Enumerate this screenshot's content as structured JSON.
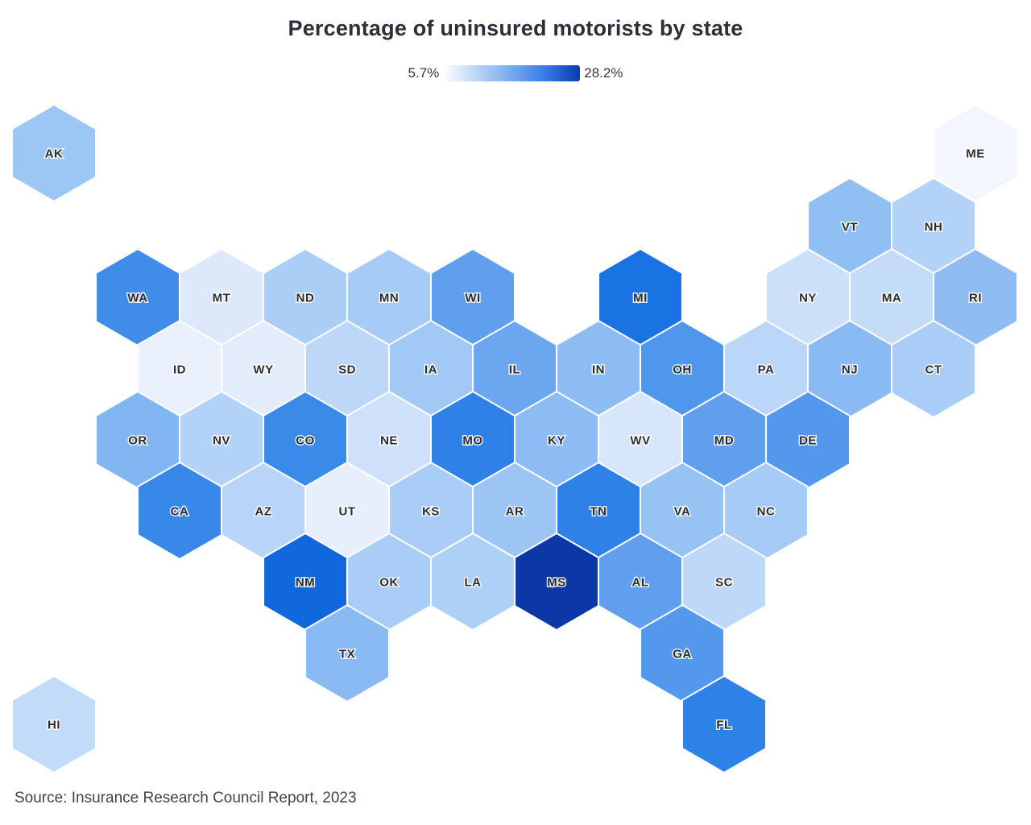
{
  "title": "Percentage of uninsured motorists by state",
  "legend": {
    "min_label": "5.7%",
    "max_label": "28.2%",
    "min_value": 5.7,
    "max_value": 28.2,
    "gradient_start_color": "#ffffff",
    "gradient_mid_color": "#3b82e8",
    "gradient_end_color": "#0a3bb3"
  },
  "source": "Source: Insurance Research Council Report, 2023",
  "chart_data": {
    "type": "heatmap",
    "subtype": "hex-tile-cartogram",
    "title": "Percentage of uninsured motorists by state",
    "value_unit": "%",
    "scale_min": 5.7,
    "scale_max": 28.2,
    "legend_position": "top-center",
    "label_color": "#2d2d2d",
    "states": [
      {
        "abbr": "AK",
        "row": 0,
        "col": 0,
        "color": "#9cc6f4",
        "value_est_pct": 12.5
      },
      {
        "abbr": "ME",
        "row": 0,
        "col": 11,
        "color": "#f3f7fd",
        "value_est_pct": 5.7
      },
      {
        "abbr": "VT",
        "row": 1,
        "col": 9.5,
        "color": "#90bff4",
        "value_est_pct": 13.3
      },
      {
        "abbr": "NH",
        "row": 1,
        "col": 10.5,
        "color": "#b3d2f7",
        "value_est_pct": 10.9
      },
      {
        "abbr": "WA",
        "row": 2,
        "col": 1,
        "color": "#3f8de9",
        "value_est_pct": 19.7
      },
      {
        "abbr": "MT",
        "row": 2,
        "col": 2,
        "color": "#dde9fb",
        "value_est_pct": 8.0
      },
      {
        "abbr": "ND",
        "row": 2,
        "col": 3,
        "color": "#abcef6",
        "value_est_pct": 11.3
      },
      {
        "abbr": "MN",
        "row": 2,
        "col": 4,
        "color": "#a6cbf6",
        "value_est_pct": 11.8
      },
      {
        "abbr": "WI",
        "row": 2,
        "col": 5,
        "color": "#5f9fee",
        "value_est_pct": 17.2
      },
      {
        "abbr": "MI",
        "row": 2,
        "col": 7,
        "color": "#1a73e2",
        "value_est_pct": 23.0
      },
      {
        "abbr": "NY",
        "row": 2,
        "col": 9,
        "color": "#cde0fa",
        "value_est_pct": 9.1
      },
      {
        "abbr": "MA",
        "row": 2,
        "col": 10,
        "color": "#c5dcf9",
        "value_est_pct": 9.5
      },
      {
        "abbr": "RI",
        "row": 2,
        "col": 11,
        "color": "#8fbdf3",
        "value_est_pct": 13.6
      },
      {
        "abbr": "ID",
        "row": 3,
        "col": 1.5,
        "color": "#e9f0fc",
        "value_est_pct": 7.0
      },
      {
        "abbr": "WY",
        "row": 3,
        "col": 2.5,
        "color": "#e3ecfb",
        "value_est_pct": 7.5
      },
      {
        "abbr": "SD",
        "row": 3,
        "col": 3.5,
        "color": "#bdd7f8",
        "value_est_pct": 10.2
      },
      {
        "abbr": "IA",
        "row": 3,
        "col": 4.5,
        "color": "#a2c9f5",
        "value_est_pct": 12.0
      },
      {
        "abbr": "IL",
        "row": 3,
        "col": 5.5,
        "color": "#6ba7ef",
        "value_est_pct": 16.3
      },
      {
        "abbr": "IN",
        "row": 3,
        "col": 6.5,
        "color": "#8cbcf3",
        "value_est_pct": 13.8
      },
      {
        "abbr": "OH",
        "row": 3,
        "col": 7.5,
        "color": "#4e97ec",
        "value_est_pct": 18.5
      },
      {
        "abbr": "PA",
        "row": 3,
        "col": 8.5,
        "color": "#bad6f8",
        "value_est_pct": 10.4
      },
      {
        "abbr": "NJ",
        "row": 3,
        "col": 9.5,
        "color": "#8abaf3",
        "value_est_pct": 14.0
      },
      {
        "abbr": "CT",
        "row": 3,
        "col": 10.5,
        "color": "#a9cdf6",
        "value_est_pct": 11.6
      },
      {
        "abbr": "OR",
        "row": 4,
        "col": 1,
        "color": "#82b6f2",
        "value_est_pct": 14.7
      },
      {
        "abbr": "NV",
        "row": 4,
        "col": 2,
        "color": "#b3d2f7",
        "value_est_pct": 10.9
      },
      {
        "abbr": "CO",
        "row": 4,
        "col": 3,
        "color": "#3a8ae9",
        "value_est_pct": 20.1
      },
      {
        "abbr": "NE",
        "row": 4,
        "col": 4,
        "color": "#cfe0fa",
        "value_est_pct": 9.1
      },
      {
        "abbr": "MO",
        "row": 4,
        "col": 5,
        "color": "#2f81e7",
        "value_est_pct": 21.0
      },
      {
        "abbr": "KY",
        "row": 4,
        "col": 6,
        "color": "#8cbcf3",
        "value_est_pct": 13.8
      },
      {
        "abbr": "WV",
        "row": 4,
        "col": 7,
        "color": "#d7e6fa",
        "value_est_pct": 8.4
      },
      {
        "abbr": "MD",
        "row": 4,
        "col": 8,
        "color": "#5f9fee",
        "value_est_pct": 17.2
      },
      {
        "abbr": "DE",
        "row": 4,
        "col": 9,
        "color": "#5398ec",
        "value_est_pct": 18.1
      },
      {
        "abbr": "CA",
        "row": 5,
        "col": 1.5,
        "color": "#3788e8",
        "value_est_pct": 20.3
      },
      {
        "abbr": "AZ",
        "row": 5,
        "col": 2.5,
        "color": "#b8d4f8",
        "value_est_pct": 10.7
      },
      {
        "abbr": "UT",
        "row": 5,
        "col": 3.5,
        "color": "#e8effc",
        "value_est_pct": 7.0
      },
      {
        "abbr": "KS",
        "row": 5,
        "col": 4.5,
        "color": "#a9cdf6",
        "value_est_pct": 11.6
      },
      {
        "abbr": "AR",
        "row": 5,
        "col": 5.5,
        "color": "#9cc5f5",
        "value_est_pct": 12.5
      },
      {
        "abbr": "TN",
        "row": 5,
        "col": 6.5,
        "color": "#2e81e7",
        "value_est_pct": 21.0
      },
      {
        "abbr": "VA",
        "row": 5,
        "col": 7.5,
        "color": "#96c2f4",
        "value_est_pct": 12.9
      },
      {
        "abbr": "NC",
        "row": 5,
        "col": 8.5,
        "color": "#a5cbf6",
        "value_est_pct": 11.8
      },
      {
        "abbr": "NM",
        "row": 6,
        "col": 3,
        "color": "#1168dc",
        "value_est_pct": 24.2
      },
      {
        "abbr": "OK",
        "row": 6,
        "col": 4,
        "color": "#a9cdf6",
        "value_est_pct": 11.6
      },
      {
        "abbr": "LA",
        "row": 6,
        "col": 5,
        "color": "#aed0f7",
        "value_est_pct": 11.3
      },
      {
        "abbr": "MS",
        "row": 6,
        "col": 6,
        "color": "#0b38a6",
        "value_est_pct": 28.2
      },
      {
        "abbr": "AL",
        "row": 6,
        "col": 7,
        "color": "#5f9fee",
        "value_est_pct": 17.2
      },
      {
        "abbr": "SC",
        "row": 6,
        "col": 8,
        "color": "#bdd8f8",
        "value_est_pct": 10.2
      },
      {
        "abbr": "TX",
        "row": 7,
        "col": 3.5,
        "color": "#8abaf3",
        "value_est_pct": 14.0
      },
      {
        "abbr": "GA",
        "row": 7,
        "col": 7.5,
        "color": "#5398ec",
        "value_est_pct": 18.1
      },
      {
        "abbr": "HI",
        "row": 8,
        "col": 0,
        "color": "#c2dbf9",
        "value_est_pct": 9.8
      },
      {
        "abbr": "FL",
        "row": 8,
        "col": 8,
        "color": "#2e81e7",
        "value_est_pct": 21.0
      }
    ]
  }
}
